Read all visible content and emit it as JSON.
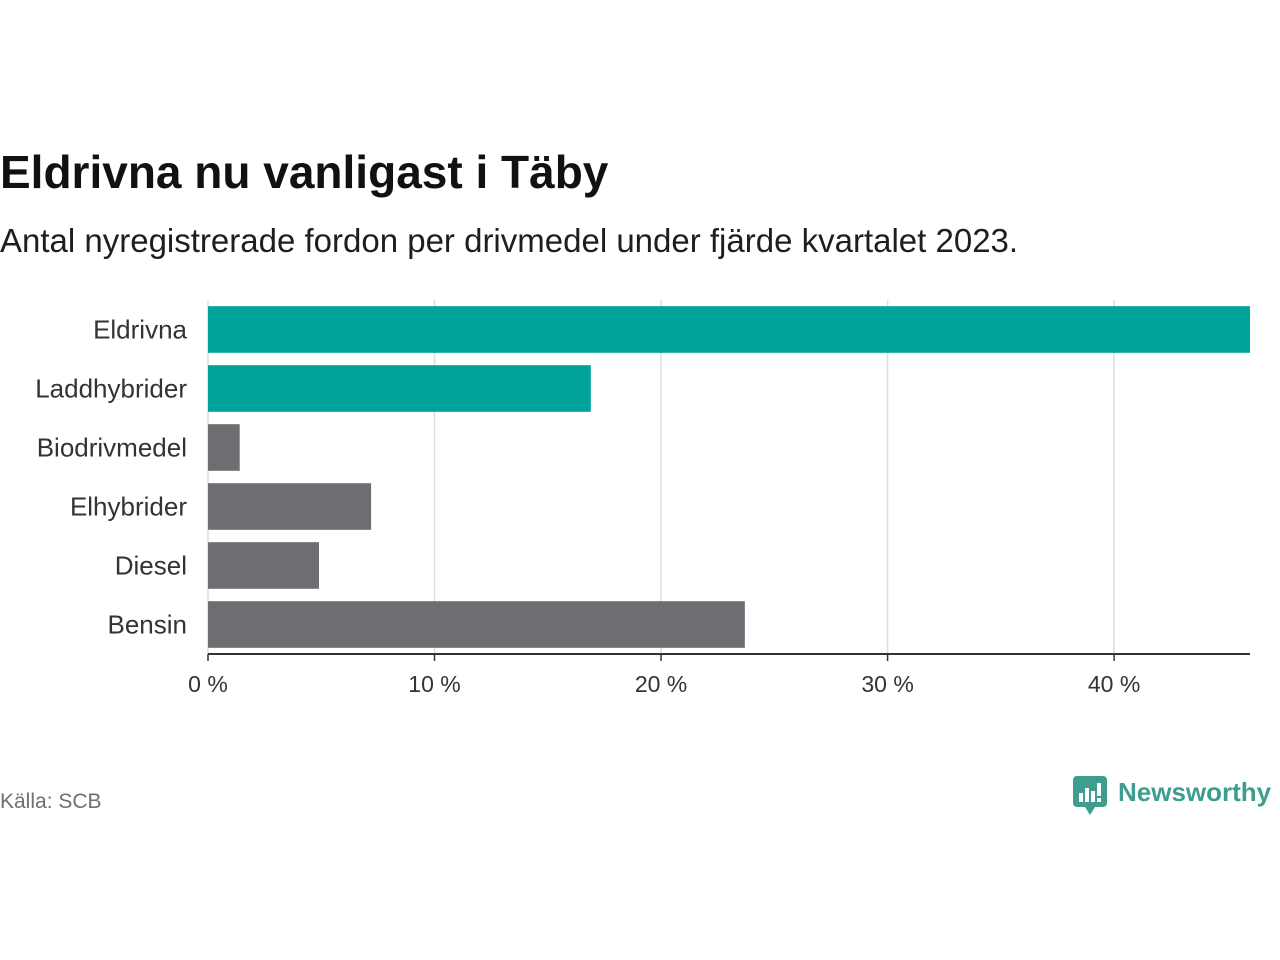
{
  "chart_data": {
    "type": "bar",
    "horizontal": true,
    "title": "Eldrivna nu vanligast i Täby",
    "subtitle": "Antal nyregistrerade fordon per drivmedel under fjärde kvartalet 2023.",
    "categories": [
      "Eldrivna",
      "Laddhybrider",
      "Biodrivmedel",
      "Elhybrider",
      "Diesel",
      "Bensin"
    ],
    "values": [
      46.0,
      16.9,
      1.4,
      7.2,
      4.9,
      23.7
    ],
    "xlim": [
      0,
      46
    ],
    "x_ticks": [
      0,
      10,
      20,
      30,
      40
    ],
    "x_tick_labels": [
      "0 %",
      "10 %",
      "20 %",
      "30 %",
      "40 %"
    ],
    "grid": true,
    "bar_colors": [
      "#00A39A",
      "#00A39A",
      "#6E6D72",
      "#6E6D72",
      "#6E6D72",
      "#6E6D72"
    ],
    "source": "Källa: SCB"
  },
  "branding": {
    "logo_text": "Newsworthy",
    "logo_color": "#3D9D8E"
  },
  "style": {
    "grid_color": "#DDDDDD",
    "axis_color": "#333333"
  }
}
